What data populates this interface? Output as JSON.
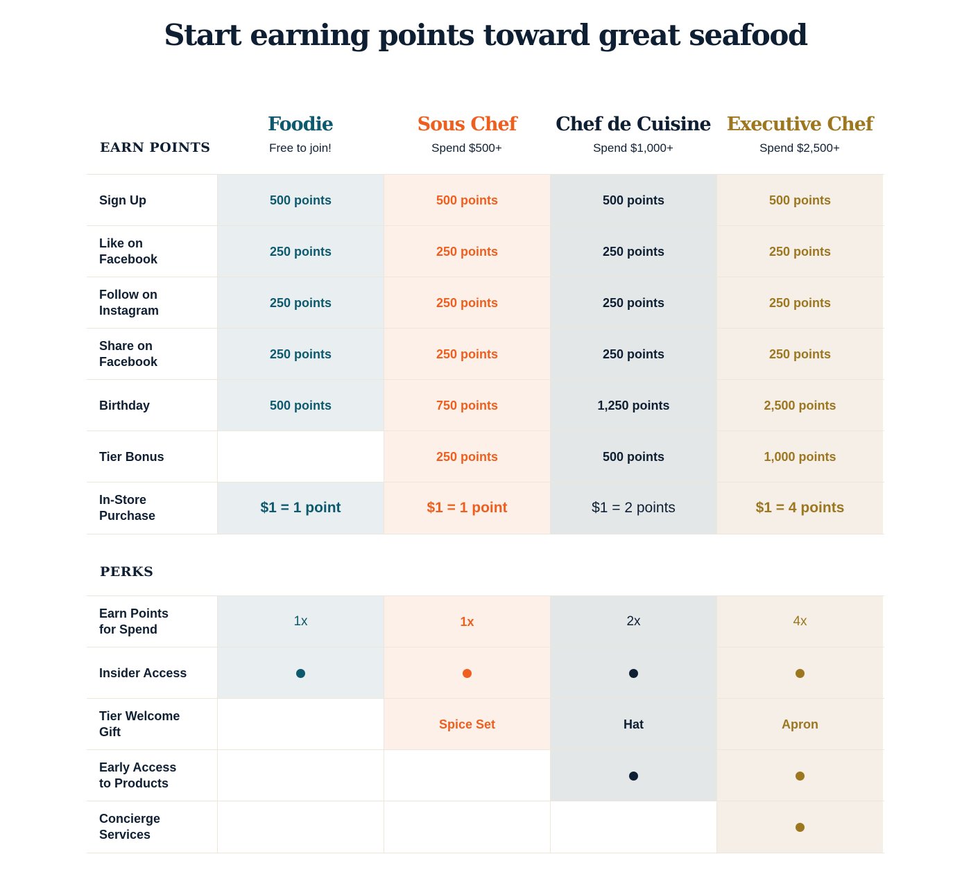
{
  "title": "Start earning points toward great seafood",
  "colors": {
    "foodie": "#0d5a6e",
    "sous_chef": "#ee5f1f",
    "chef_de_cuisine": "#0f1f33",
    "executive_chef": "#9c7720"
  },
  "tiers": [
    {
      "name": "Foodie",
      "spend": "Free to join!"
    },
    {
      "name": "Sous Chef",
      "spend": "Spend $500+"
    },
    {
      "name": "Chef de Cuisine",
      "spend": "Spend $1,000+"
    },
    {
      "name": "Executive Chef",
      "spend": "Spend $2,500+"
    }
  ],
  "earn": {
    "label": "EARN POINTS",
    "rows": [
      {
        "label": "Sign Up",
        "values": [
          "500 points",
          "500 points",
          "500 points",
          "500 points"
        ]
      },
      {
        "label": "Like on Facebook",
        "values": [
          "250 points",
          "250 points",
          "250 points",
          "250 points"
        ]
      },
      {
        "label": "Follow on Instagram",
        "values": [
          "250 points",
          "250 points",
          "250 points",
          "250 points"
        ]
      },
      {
        "label": "Share on Facebook",
        "values": [
          "250 points",
          "250 points",
          "250 points",
          "250 points"
        ]
      },
      {
        "label": "Birthday",
        "values": [
          "500 points",
          "750 points",
          "1,250 points",
          "2,500 points"
        ]
      },
      {
        "label": "Tier Bonus",
        "values": [
          "",
          "250 points",
          "500 points",
          "1,000 points"
        ]
      },
      {
        "label": "In-Store Purchase",
        "values": [
          "$1 = 1 point",
          "$1 = 1 point",
          "$1 = 2 points",
          "$1 = 4 points"
        ]
      }
    ]
  },
  "perks": {
    "label": "PERKS",
    "rows": [
      {
        "label": "Earn Points for Spend",
        "values": [
          "1x",
          "1x",
          "2x",
          "4x"
        ]
      },
      {
        "label": "Insider Access",
        "values": [
          "dot-icon",
          "dot-icon",
          "dot-icon",
          "dot-icon"
        ]
      },
      {
        "label": "Tier Welcome Gift",
        "values": [
          "",
          "Spice Set",
          "Hat",
          "Apron"
        ]
      },
      {
        "label": "Early Access to Products",
        "values": [
          "",
          "",
          "dot-icon",
          "dot-icon"
        ]
      },
      {
        "label": "Concierge Services",
        "values": [
          "",
          "",
          "",
          "dot-icon"
        ]
      }
    ]
  }
}
